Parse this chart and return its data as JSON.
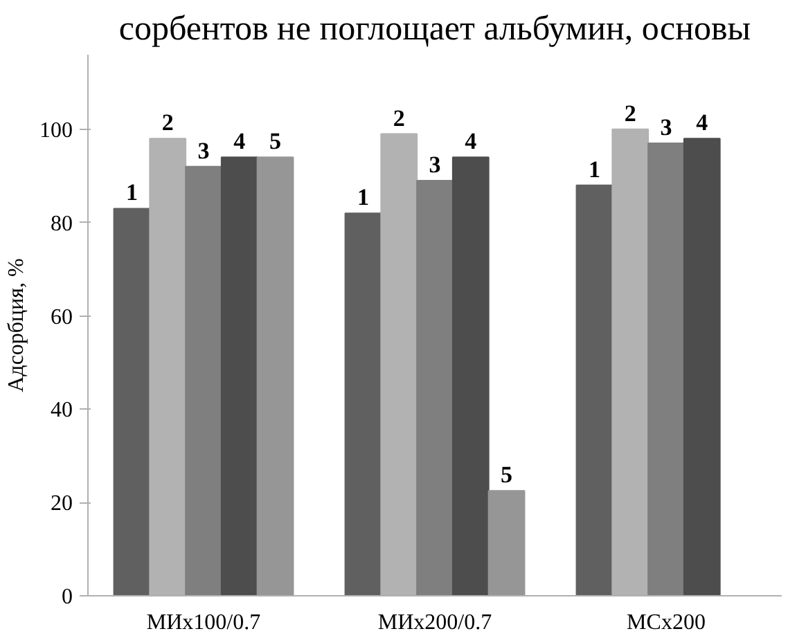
{
  "chart_data": {
    "type": "bar",
    "categories": [
      "МИх100/0.7",
      "МИх200/0.7",
      "МСх200"
    ],
    "ylabel": "Адсорбция, %",
    "annotations": [
      "сорбентов не поглощает альбумин, основы"
    ],
    "ylim": [
      0,
      116
    ],
    "yticks": [
      0,
      20,
      40,
      60,
      80,
      100
    ],
    "grid": false,
    "series": [
      {
        "name": "1",
        "color": "#606060",
        "values": [
          83,
          82,
          88
        ]
      },
      {
        "name": "2",
        "color": "#b2b2b2",
        "values": [
          98,
          99,
          100
        ]
      },
      {
        "name": "3",
        "color": "#7f7f7f",
        "values": [
          92,
          89,
          97
        ]
      },
      {
        "name": "4",
        "color": "#4d4d4d",
        "values": [
          94,
          94,
          98
        ]
      },
      {
        "name": "5",
        "color": "#969696",
        "values": [
          94,
          22.5,
          null
        ]
      }
    ]
  }
}
